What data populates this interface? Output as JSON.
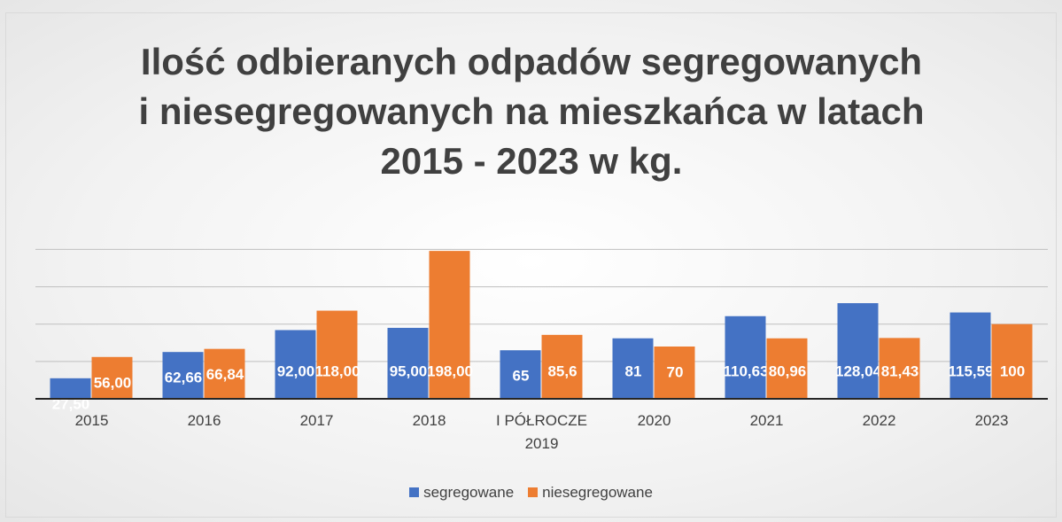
{
  "chart_data": {
    "type": "bar",
    "title": "Ilość odbieranych odpadów segregowanych i niesegregowanych na mieszkańca w latach 2015 - 2023 w kg.",
    "categories": [
      "2015",
      "2016",
      "2017",
      "2018",
      "I PÓŁROCZE 2019",
      "2020",
      "2021",
      "2022",
      "2023"
    ],
    "series": [
      {
        "name": "segregowane",
        "color": "#4472c4",
        "values": [
          27.5,
          62.66,
          92,
          95,
          65,
          81,
          110.63,
          128.04,
          115.59
        ],
        "value_labels": [
          "27,50",
          "62,66",
          "92,00",
          "95,00",
          "65",
          "81",
          "110,63",
          "128,04",
          "115,59"
        ]
      },
      {
        "name": "niesegregowane",
        "color": "#ed7d31",
        "values": [
          56,
          66.84,
          118,
          198,
          85.6,
          70,
          80.96,
          81.43,
          100
        ],
        "value_labels": [
          "56,00",
          "66,84",
          "118,00",
          "198,00",
          "85,6",
          "70",
          "80,96",
          "81,43",
          "100"
        ]
      }
    ],
    "ylim": [
      0,
      210
    ],
    "yticks": [
      0,
      50,
      100,
      150,
      200
    ],
    "grid": true,
    "legend": "bottom"
  }
}
